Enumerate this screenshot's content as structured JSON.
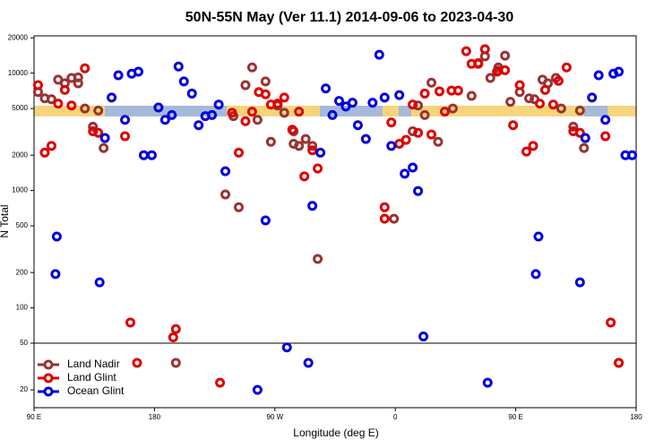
{
  "chart_data": {
    "type": "scatter",
    "title": "50N-55N May (Ver 11.1)   2014-09-06 to 2023-04-30",
    "x_label": "Longitude (deg E)",
    "y_label": "N Total",
    "xlim": [
      90,
      540
    ],
    "xticks": [
      {
        "value": 90,
        "label": "90 E"
      },
      {
        "value": 180,
        "label": "180"
      },
      {
        "value": 270,
        "label": "90 W"
      },
      {
        "value": 360,
        "label": "0"
      },
      {
        "value": 450,
        "label": "90 E"
      },
      {
        "value": 540,
        "label": "180"
      }
    ],
    "ylim": [
      14.1,
      20800
    ],
    "y_scale": "log",
    "yticks": [
      20,
      50,
      100,
      200,
      500,
      1000,
      2000,
      5000,
      10000,
      20000
    ],
    "legend": "lower left",
    "series": [
      {
        "name": "Land Nadir",
        "color": "#993333",
        "x": [
          93,
          98,
          103,
          108,
          113,
          118,
          123,
          123,
          128,
          134,
          138,
          142,
          196,
          233,
          239,
          243,
          248,
          253,
          257,
          263,
          267,
          272,
          277,
          284,
          284,
          288,
          293,
          298,
          302,
          359,
          373,
          377,
          382,
          387,
          392,
          403,
          417,
          422,
          427,
          431,
          437,
          437,
          442,
          446,
          453,
          460,
          464,
          470,
          474,
          480,
          484,
          493,
          498,
          501,
          527
        ],
        "values": [
          6900,
          6100,
          6000,
          8800,
          8200,
          9100,
          9200,
          8200,
          5000,
          3500,
          4800,
          2300,
          34,
          925,
          4300,
          720,
          7900,
          11200,
          4000,
          8500,
          2600,
          5300,
          4600,
          2500,
          3200,
          2400,
          2750,
          2400,
          261,
          575,
          3200,
          5300,
          4400,
          8300,
          2600,
          5000,
          6400,
          12200,
          13900,
          9100,
          11200,
          10500,
          14100,
          5700,
          6900,
          6100,
          6000,
          8800,
          8200,
          9100,
          5000,
          3500,
          4800,
          2300,
          34
        ]
      },
      {
        "name": "Land Glint",
        "color": "#e00000",
        "x": [
          93,
          98,
          103,
          108,
          113,
          118,
          128,
          134,
          138,
          158,
          162,
          167,
          194,
          196,
          229,
          238,
          243,
          248,
          253,
          258,
          263,
          267,
          272,
          277,
          283,
          288,
          292,
          298,
          302,
          352,
          352,
          357,
          363,
          368,
          373,
          377,
          382,
          387,
          393,
          397,
          402,
          407,
          413,
          417,
          422,
          427,
          436,
          442,
          448,
          453,
          458,
          463,
          468,
          472,
          478,
          482,
          488,
          493,
          498,
          517,
          521,
          527
        ],
        "values": [
          7900,
          2100,
          2400,
          5500,
          7200,
          5300,
          11000,
          3200,
          3100,
          2900,
          75,
          34,
          56,
          66,
          23,
          4600,
          2100,
          3900,
          4700,
          6900,
          6600,
          5400,
          5500,
          6200,
          3300,
          4700,
          1320,
          2200,
          1540,
          720,
          575,
          3800,
          2500,
          2700,
          5400,
          3100,
          6700,
          3000,
          7000,
          4700,
          7100,
          7100,
          15400,
          12000,
          12000,
          16000,
          10300,
          10600,
          3600,
          7900,
          2150,
          2400,
          5500,
          7200,
          5400,
          8600,
          11200,
          3200,
          3100,
          2900,
          75,
          34
        ]
      },
      {
        "name": "Ocean Glint",
        "color": "#0000dd",
        "x": [
          106,
          107,
          139,
          143,
          148,
          153,
          158,
          163,
          168,
          172,
          178,
          183,
          188,
          193,
          198,
          202,
          208,
          213,
          218,
          223,
          228,
          233,
          257,
          263,
          279,
          295,
          298,
          304,
          308,
          313,
          318,
          323,
          328,
          332,
          338,
          343,
          348,
          352,
          357,
          363,
          367,
          373,
          377,
          381,
          429,
          465,
          467,
          498,
          502,
          507,
          512,
          517,
          523,
          527,
          532,
          537
        ],
        "values": [
          194,
          405,
          165,
          2800,
          6200,
          9600,
          4000,
          9900,
          10300,
          2000,
          2000,
          5100,
          4000,
          4400,
          11400,
          8500,
          6700,
          3600,
          4300,
          4400,
          5400,
          1460,
          20,
          556,
          46,
          34,
          740,
          2100,
          7400,
          4400,
          5800,
          5200,
          5600,
          3600,
          2750,
          5600,
          14350,
          6200,
          2400,
          6500,
          1390,
          1570,
          990,
          57,
          23,
          194,
          405,
          165,
          2800,
          6200,
          9600,
          4000,
          9900,
          10300,
          2000,
          2000
        ]
      }
    ]
  }
}
